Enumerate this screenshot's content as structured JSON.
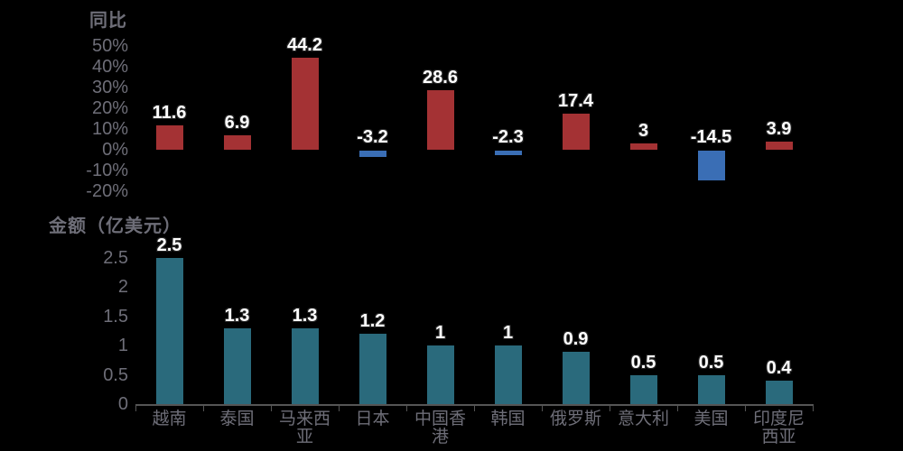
{
  "colors": {
    "background": "#000000",
    "positive_bar": "#A43234",
    "negative_bar": "#3A6EB5",
    "amount_bar": "#2A6A7C",
    "axis_text": "#6E6E78",
    "axis_line": "#555555",
    "value_label_text": "#FFFFFF",
    "value_label_outline": "#262626"
  },
  "chart_data": [
    {
      "type": "bar",
      "title": "同比",
      "categories": [
        "越南",
        "泰国",
        "马来西亚",
        "日本",
        "中国香港",
        "韩国",
        "俄罗斯",
        "意大利",
        "美国",
        "印度尼西亚"
      ],
      "values": [
        11.6,
        6.9,
        44.2,
        -3.2,
        28.6,
        -2.3,
        17.4,
        3,
        -14.5,
        3.9
      ],
      "value_labels": [
        "11.6",
        "6.9",
        "44.2",
        "-3.2",
        "28.6",
        "-2.3",
        "17.4",
        "3",
        "-14.5",
        "3.9"
      ],
      "unit": "%",
      "ylim": [
        -20,
        50
      ],
      "yticks": [
        {
          "value": 50,
          "label": "50%"
        },
        {
          "value": 40,
          "label": "40%"
        },
        {
          "value": 30,
          "label": "30%"
        },
        {
          "value": 20,
          "label": "20%"
        },
        {
          "value": 10,
          "label": "10%"
        },
        {
          "value": 0,
          "label": "0%"
        },
        {
          "value": -10,
          "label": "-10%"
        },
        {
          "value": -20,
          "label": "-20%"
        }
      ],
      "grid": false,
      "legend": false,
      "x_labels_shown": false,
      "bar_color_rule": "red above zero, blue below zero"
    },
    {
      "type": "bar",
      "title": "金额（亿美元）",
      "categories": [
        "越南",
        "泰国",
        "马来西亚",
        "日本",
        "中国香港",
        "韩国",
        "俄罗斯",
        "意大利",
        "美国",
        "印度尼西亚"
      ],
      "category_lines": [
        [
          "越南"
        ],
        [
          "泰国"
        ],
        [
          "马来西",
          "亚"
        ],
        [
          "日本"
        ],
        [
          "中国香",
          "港"
        ],
        [
          "韩国"
        ],
        [
          "俄罗斯"
        ],
        [
          "意大利"
        ],
        [
          "美国"
        ],
        [
          "印度尼",
          "西亚"
        ]
      ],
      "values": [
        2.5,
        1.3,
        1.3,
        1.2,
        1,
        1,
        0.9,
        0.5,
        0.5,
        0.4
      ],
      "value_labels": [
        "2.5",
        "1.3",
        "1.3",
        "1.2",
        "1",
        "1",
        "0.9",
        "0.5",
        "0.5",
        "0.4"
      ],
      "ylim": [
        0,
        2.5
      ],
      "yticks": [
        {
          "value": 2.5,
          "label": "2.5"
        },
        {
          "value": 2,
          "label": "2"
        },
        {
          "value": 1.5,
          "label": "1.5"
        },
        {
          "value": 1,
          "label": "1"
        },
        {
          "value": 0.5,
          "label": "0.5"
        },
        {
          "value": 0,
          "label": "0"
        }
      ],
      "grid": false,
      "legend": false,
      "x_labels_shown": true
    }
  ]
}
